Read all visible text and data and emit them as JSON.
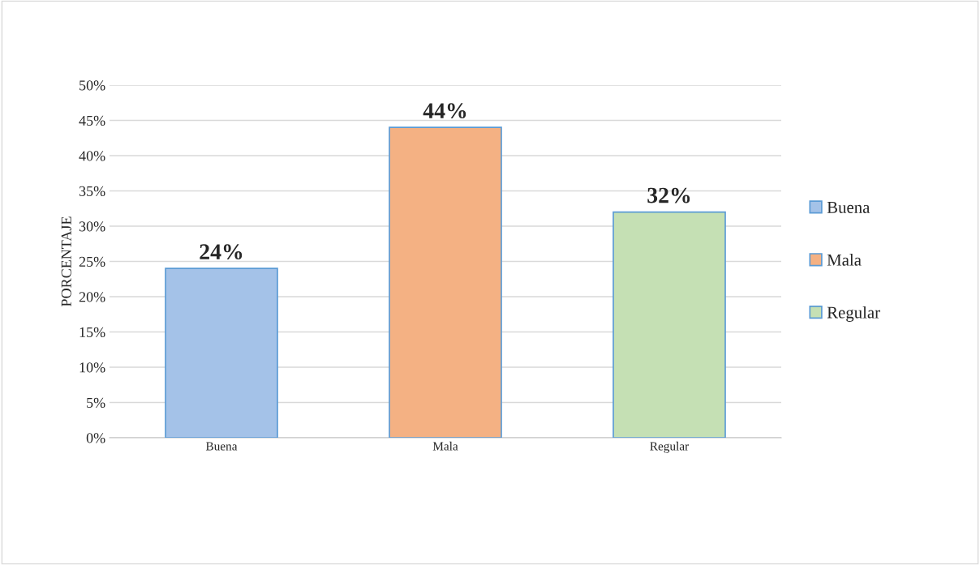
{
  "chart_data": {
    "type": "bar",
    "ylabel": "PORCENTAJE",
    "categories": [
      "Buena",
      "Mala",
      "Regular"
    ],
    "series": [
      {
        "name": "Buena",
        "color": "#a4c2e8",
        "values": [
          24,
          null,
          null
        ],
        "value_labels": [
          "24%",
          null,
          null
        ]
      },
      {
        "name": "Mala",
        "color": "#f4b183",
        "values": [
          null,
          44,
          null
        ],
        "value_labels": [
          null,
          "44%",
          null
        ]
      },
      {
        "name": "Regular",
        "color": "#c5e0b4",
        "values": [
          null,
          null,
          32
        ],
        "value_labels": [
          null,
          null,
          "32%"
        ]
      }
    ],
    "ylim": [
      0,
      50
    ],
    "yticks": [
      {
        "value": 0,
        "label": "0%"
      },
      {
        "value": 5,
        "label": "5%"
      },
      {
        "value": 10,
        "label": "10%"
      },
      {
        "value": 15,
        "label": "15%"
      },
      {
        "value": 20,
        "label": "20%"
      },
      {
        "value": 25,
        "label": "25%"
      },
      {
        "value": 30,
        "label": "30%"
      },
      {
        "value": 35,
        "label": "35%"
      },
      {
        "value": 40,
        "label": "40%"
      },
      {
        "value": 45,
        "label": "45%"
      },
      {
        "value": 50,
        "label": "50%"
      }
    ],
    "grid": "y",
    "legend": "right"
  }
}
